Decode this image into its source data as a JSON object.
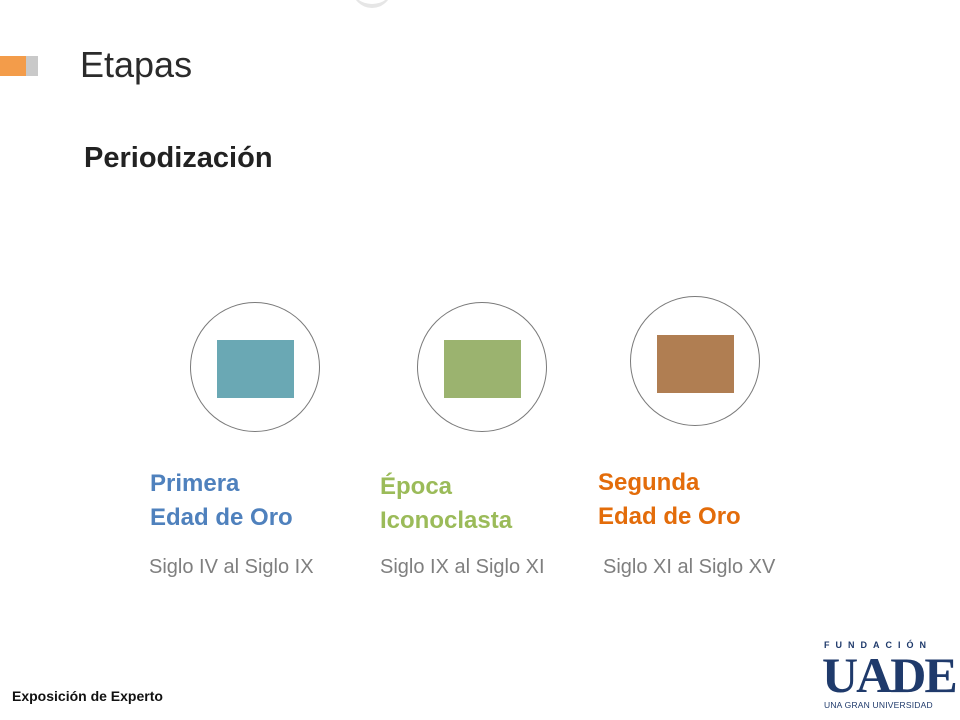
{
  "slide": {
    "title": "Etapas",
    "subtitle": "Periodización",
    "footer": "Exposición de Experto"
  },
  "stages": [
    {
      "name_line1": "Primera",
      "name_line2": "Edad de Oro",
      "period": "Siglo IV al Siglo IX",
      "color": "#4f81bd",
      "square_color": "#6aa8b4"
    },
    {
      "name_line1": "Época",
      "name_line2": "Iconoclasta",
      "period": "Siglo IX al Siglo XI",
      "color": "#9bbb59",
      "square_color": "#9bb36f"
    },
    {
      "name_line1": "Segunda",
      "name_line2": "Edad de Oro",
      "period": "Siglo XI al Siglo XV",
      "color": "#e36c0a",
      "square_color": "#b07e52"
    }
  ],
  "logo": {
    "top_text": "FUNDACIÓN",
    "main_text": "UADE",
    "tagline": "UNA GRAN UNIVERSIDAD"
  }
}
